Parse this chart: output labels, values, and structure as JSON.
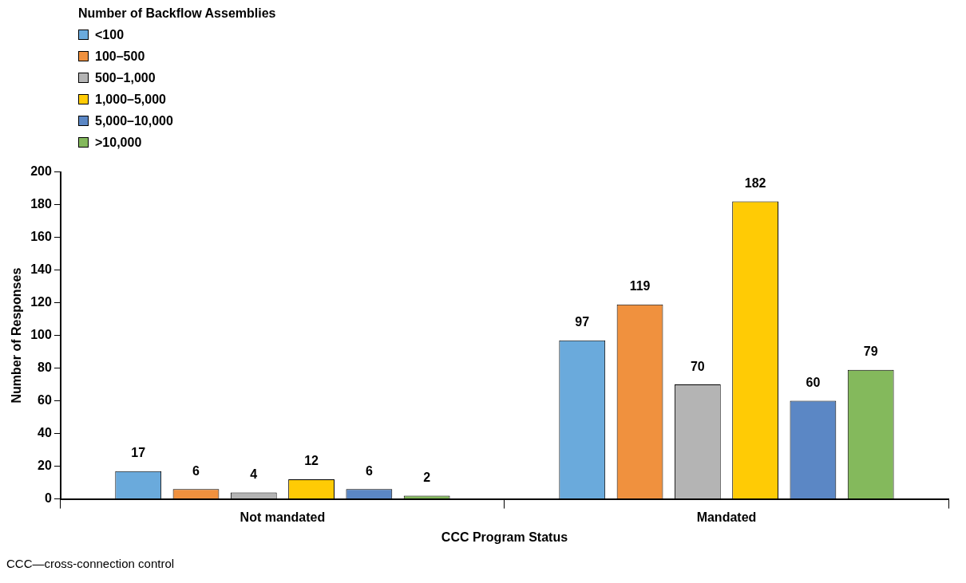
{
  "chart_data": {
    "type": "bar",
    "xlabel": "CCC Program Status",
    "ylabel": "Number of Responses",
    "legend_title": "Number of Backflow Assemblies",
    "categories": [
      "Not mandated",
      "Mandated"
    ],
    "series": [
      {
        "name": "<100",
        "color": "#6aaadc",
        "values": [
          17,
          97
        ]
      },
      {
        "name": "100–500",
        "color": "#f0913e",
        "values": [
          6,
          119
        ]
      },
      {
        "name": "500–1,000",
        "color": "#b4b4b4",
        "values": [
          4,
          70
        ]
      },
      {
        "name": "1,000–5,000",
        "color": "#ffcb05",
        "values": [
          12,
          182
        ]
      },
      {
        "name": "5,000–10,000",
        "color": "#5b87c5",
        "values": [
          6,
          60
        ]
      },
      {
        "name": ">10,000",
        "color": "#84b95c",
        "values": [
          2,
          79
        ]
      }
    ],
    "ylim": [
      0,
      200
    ],
    "yticks": [
      0,
      20,
      40,
      60,
      80,
      100,
      120,
      140,
      160,
      180,
      200
    ],
    "grid": false,
    "legend": "top left",
    "data_labels": true,
    "annotations": [
      "CCC—cross-connection control"
    ]
  }
}
